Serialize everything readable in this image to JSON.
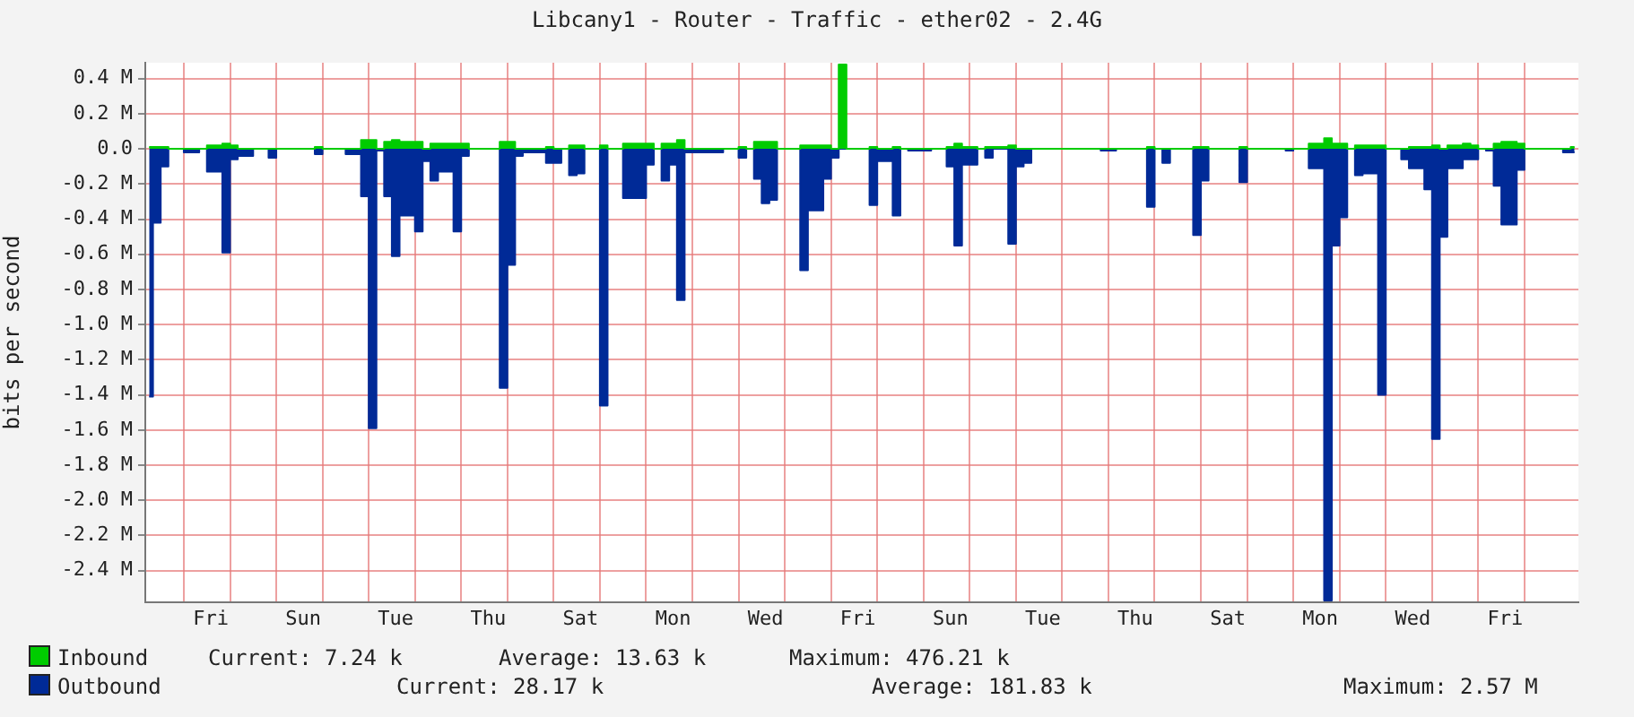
{
  "chart_data": {
    "type": "area",
    "title": "Libcany1 - Router - Traffic - ether02 - 2.4G",
    "ylabel": "bits per second",
    "categories": [
      null,
      null,
      null,
      null,
      null,
      null,
      null,
      null,
      "Fri",
      null,
      null,
      null,
      null,
      null,
      null,
      null,
      null,
      null,
      null,
      null,
      "Sun",
      null,
      null,
      null,
      null,
      null,
      null,
      null,
      null,
      null,
      null,
      null,
      "Tue",
      null,
      null,
      null,
      null,
      null,
      null,
      null,
      null,
      null,
      null,
      null,
      "Thu",
      null,
      null,
      null,
      null,
      null,
      null,
      null,
      null,
      null,
      null,
      null,
      "Sat",
      null,
      null,
      null,
      null,
      null,
      null,
      null,
      null,
      null,
      null,
      null,
      "Mon",
      null,
      null,
      null,
      null,
      null,
      null,
      null,
      null,
      null,
      null,
      null,
      "Wed",
      null,
      null,
      null,
      null,
      null,
      null,
      null,
      null,
      null,
      null,
      null,
      "Fri",
      null,
      null,
      null,
      null,
      null,
      null,
      null,
      null,
      null,
      null,
      null,
      "Sun",
      null,
      null,
      null,
      null,
      null,
      null,
      null,
      null,
      null,
      null,
      null,
      "Tue",
      null,
      null,
      null,
      null,
      null,
      null,
      null,
      null,
      null,
      null,
      null,
      "Thu",
      null,
      null,
      null,
      null,
      null,
      null,
      null,
      null,
      null,
      null,
      null,
      "Sat",
      null,
      null,
      null,
      null,
      null,
      null,
      null,
      null,
      null,
      null,
      null,
      "Mon",
      null,
      null,
      null,
      null,
      null,
      null,
      null,
      null,
      null,
      null,
      null,
      "Wed",
      null,
      null,
      null,
      null,
      null,
      null,
      null,
      null,
      null,
      null,
      null,
      "Fri",
      null,
      null,
      null,
      null,
      null,
      null,
      null,
      null,
      null
    ],
    "ylim": [
      -2.58,
      0.49
    ],
    "yticks": [
      {
        "value": 0.4,
        "label": "0.4 M"
      },
      {
        "value": 0.2,
        "label": "0.2 M"
      },
      {
        "value": 0,
        "label": "0.0"
      },
      {
        "value": -0.2,
        "label": "-0.2 M"
      },
      {
        "value": -0.4,
        "label": "-0.4 M"
      },
      {
        "value": -0.6,
        "label": "-0.6 M"
      },
      {
        "value": -0.8,
        "label": "-0.8 M"
      },
      {
        "value": -1.0,
        "label": "-1.0 M"
      },
      {
        "value": -1.2,
        "label": "-1.2 M"
      },
      {
        "value": -1.4,
        "label": "-1.4 M"
      },
      {
        "value": -1.6,
        "label": "-1.6 M"
      },
      {
        "value": -1.8,
        "label": "-1.8 M"
      },
      {
        "value": -2.0,
        "label": "-2.0 M"
      },
      {
        "value": -2.2,
        "label": "-2.2 M"
      },
      {
        "value": -2.4,
        "label": "-2.4 M"
      }
    ],
    "grid": true,
    "legend": "bottom",
    "annotations": [
      "Current: 7.24 k",
      "Average: 13.63 k",
      "Maximum: 476.21 k",
      "Current: 28.17 k",
      "Average: 181.83 k",
      "Maximum: 2.57 M"
    ],
    "series": [
      {
        "name": "Inbound",
        "color": "#00cc00",
        "values": [
          0.01,
          0.01,
          0.01,
          0,
          0,
          0,
          0,
          0,
          0.02,
          0.02,
          0.03,
          0.02,
          0,
          0,
          0,
          0,
          0,
          0,
          0,
          0,
          0,
          0,
          0.01,
          0,
          0,
          0,
          0,
          0,
          0.05,
          0.05,
          0,
          0.04,
          0.05,
          0.04,
          0.04,
          0.04,
          0,
          0.03,
          0.03,
          0.03,
          0.03,
          0.03,
          0,
          0,
          0,
          0,
          0.04,
          0.04,
          0,
          0,
          0,
          0,
          0.01,
          0,
          0,
          0.02,
          0.02,
          0,
          0,
          0.02,
          0,
          0,
          0.03,
          0.03,
          0.03,
          0.03,
          0,
          0.03,
          0.03,
          0.05,
          0,
          0,
          0,
          0,
          0,
          0,
          0,
          0.01,
          0,
          0.04,
          0.04,
          0.04,
          0,
          0,
          0,
          0.02,
          0.02,
          0.02,
          0.02,
          0,
          0.48,
          0,
          0,
          0,
          0.01,
          0,
          0,
          0.01,
          0,
          0,
          0,
          0,
          0,
          0,
          0.01,
          0.03,
          0.01,
          0.01,
          0,
          0.01,
          0.01,
          0.01,
          0.02,
          0,
          0,
          0,
          0,
          0,
          0,
          0,
          0,
          0,
          0,
          0,
          0,
          0,
          0,
          0,
          0,
          0,
          0.01,
          0,
          0,
          0,
          0,
          0,
          0.01,
          0.01,
          0,
          0,
          0,
          0,
          0.01,
          0,
          0,
          0,
          0,
          0,
          0,
          0,
          0,
          0.03,
          0.03,
          0.06,
          0.03,
          0.03,
          0,
          0.02,
          0.02,
          0.02,
          0.02,
          0,
          0,
          0,
          0.01,
          0.01,
          0.01,
          0.02,
          0,
          0.02,
          0.02,
          0.03,
          0.02,
          0,
          0,
          0.03,
          0.04,
          0.04,
          0.03,
          0,
          0,
          0,
          0,
          0,
          0,
          0.01
        ]
      },
      {
        "name": "Outbound",
        "color": "#002a97",
        "values": [
          -1.41,
          -0.42,
          -0.1,
          0,
          0,
          -0.02,
          -0.02,
          0,
          -0.13,
          -0.13,
          -0.59,
          -0.06,
          -0.04,
          -0.04,
          0,
          0,
          -0.05,
          0,
          0,
          0,
          0,
          0,
          -0.03,
          0,
          0,
          0,
          -0.03,
          -0.03,
          -0.27,
          -1.59,
          -0.01,
          -0.27,
          -0.61,
          -0.38,
          -0.38,
          -0.47,
          -0.07,
          -0.18,
          -0.13,
          -0.13,
          -0.47,
          -0.04,
          0,
          0,
          0,
          0,
          -1.36,
          -0.66,
          -0.04,
          -0.02,
          -0.02,
          -0.02,
          -0.08,
          -0.08,
          0,
          -0.15,
          -0.14,
          0,
          0,
          -1.46,
          0,
          0,
          -0.28,
          -0.28,
          -0.28,
          -0.09,
          0,
          -0.18,
          -0.09,
          -0.86,
          -0.02,
          -0.02,
          -0.02,
          -0.02,
          -0.02,
          0,
          0,
          -0.05,
          0,
          -0.17,
          -0.31,
          -0.29,
          0,
          0,
          0,
          -0.69,
          -0.35,
          -0.35,
          -0.17,
          -0.05,
          0,
          0,
          0,
          0,
          -0.32,
          -0.07,
          -0.07,
          -0.38,
          0,
          -0.01,
          -0.01,
          -0.01,
          0,
          0,
          -0.1,
          -0.55,
          -0.09,
          -0.09,
          0,
          -0.05,
          0,
          0,
          -0.54,
          -0.1,
          -0.08,
          0,
          0,
          0,
          0,
          0,
          0,
          0,
          0,
          0,
          -0.01,
          -0.01,
          0,
          0,
          0,
          0,
          -0.33,
          0,
          -0.08,
          0,
          0,
          0,
          -0.49,
          -0.18,
          0,
          0,
          0,
          0,
          -0.19,
          0,
          0,
          0,
          0,
          0,
          -0.01,
          0,
          0,
          -0.11,
          -0.11,
          -2.57,
          -0.55,
          -0.39,
          0,
          -0.15,
          -0.14,
          -0.14,
          -1.4,
          0,
          0,
          -0.06,
          -0.11,
          -0.11,
          -0.23,
          -1.65,
          -0.5,
          -0.11,
          -0.11,
          -0.06,
          -0.06,
          0,
          -0.01,
          -0.21,
          -0.43,
          -0.43,
          -0.12,
          0,
          0,
          0,
          0,
          0,
          -0.02,
          -0.02
        ]
      }
    ]
  }
}
